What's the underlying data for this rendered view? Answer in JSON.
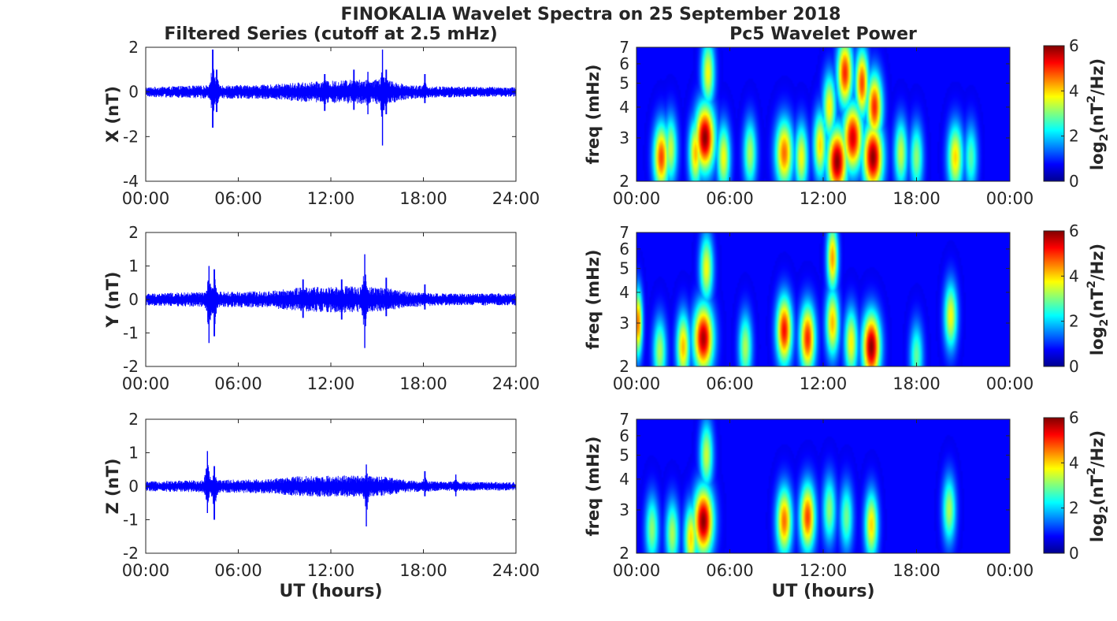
{
  "figure": {
    "title": "FINOKALIA Wavelet Spectra on 25 September 2018",
    "left_column_title": "Filtered Series (cutoff at 2.5 mHz)",
    "right_column_title": "Pc5 Wavelet Power",
    "xlabel": "UT (hours)"
  },
  "chart_data": [
    {
      "type": "line",
      "panel": "X",
      "ylabel": "X (nT)",
      "x_ticks": [
        "00:00",
        "06:00",
        "12:00",
        "18:00",
        "24:00"
      ],
      "y_ticks": [
        "2",
        "0",
        "-2",
        "-4"
      ],
      "ylim": [
        -4,
        2
      ],
      "xlim_hours": [
        0,
        24
      ],
      "color": "#0000ff",
      "base_noise_nT": [
        [
          0,
          0.12
        ],
        [
          3,
          0.16
        ],
        [
          8,
          0.18
        ],
        [
          10,
          0.24
        ],
        [
          13,
          0.3
        ],
        [
          15.5,
          0.32
        ],
        [
          17,
          0.18
        ],
        [
          19,
          0.14
        ],
        [
          24,
          0.12
        ]
      ],
      "spikes": [
        {
          "t": 4.35,
          "max": 1.9,
          "min": -1.6
        },
        {
          "t": 4.6,
          "max": 1.0,
          "min": -0.9
        },
        {
          "t": 11.6,
          "max": 0.8,
          "min": -0.85
        },
        {
          "t": 13.5,
          "max": 1.0,
          "min": -0.8
        },
        {
          "t": 14.4,
          "max": 0.9,
          "min": -1.0
        },
        {
          "t": 15.35,
          "max": 1.9,
          "min": -2.4
        },
        {
          "t": 15.6,
          "max": 1.0,
          "min": -1.0
        },
        {
          "t": 18.1,
          "max": 0.8,
          "min": -0.5
        }
      ]
    },
    {
      "type": "line",
      "panel": "Y",
      "ylabel": "Y (nT)",
      "x_ticks": [
        "00:00",
        "06:00",
        "12:00",
        "18:00",
        "24:00"
      ],
      "y_ticks": [
        "2",
        "1",
        "0",
        "-1",
        "-2"
      ],
      "ylim": [
        -2,
        2
      ],
      "xlim_hours": [
        0,
        24
      ],
      "color": "#0000ff",
      "base_noise_nT": [
        [
          0,
          0.1
        ],
        [
          3,
          0.12
        ],
        [
          8,
          0.14
        ],
        [
          10,
          0.2
        ],
        [
          13,
          0.22
        ],
        [
          15.5,
          0.2
        ],
        [
          17,
          0.13
        ],
        [
          19,
          0.1
        ],
        [
          24,
          0.1
        ]
      ],
      "spikes": [
        {
          "t": 4.1,
          "max": 1.0,
          "min": -1.3
        },
        {
          "t": 4.45,
          "max": 0.9,
          "min": -1.1
        },
        {
          "t": 10.2,
          "max": 0.6,
          "min": -0.55
        },
        {
          "t": 12.7,
          "max": 0.6,
          "min": -0.6
        },
        {
          "t": 14.2,
          "max": 1.35,
          "min": -1.45
        },
        {
          "t": 15.6,
          "max": 0.65,
          "min": -0.5
        },
        {
          "t": 18.1,
          "max": 0.45,
          "min": -0.3
        }
      ]
    },
    {
      "type": "line",
      "panel": "Z",
      "ylabel": "Z (nT)",
      "x_ticks": [
        "00:00",
        "06:00",
        "12:00",
        "18:00",
        "24:00"
      ],
      "y_ticks": [
        "2",
        "1",
        "0",
        "-1",
        "-2"
      ],
      "ylim": [
        -2,
        2
      ],
      "xlim_hours": [
        0,
        24
      ],
      "color": "#0000ff",
      "base_noise_nT": [
        [
          0,
          0.08
        ],
        [
          3,
          0.1
        ],
        [
          8,
          0.12
        ],
        [
          10,
          0.17
        ],
        [
          13,
          0.18
        ],
        [
          15.5,
          0.16
        ],
        [
          17,
          0.1
        ],
        [
          19,
          0.08
        ],
        [
          24,
          0.07
        ]
      ],
      "spikes": [
        {
          "t": 4.0,
          "max": 1.05,
          "min": -0.8
        },
        {
          "t": 4.45,
          "max": 0.6,
          "min": -1.0
        },
        {
          "t": 14.3,
          "max": 0.65,
          "min": -1.2
        },
        {
          "t": 18.1,
          "max": 0.45,
          "min": -0.3
        },
        {
          "t": 20.1,
          "max": 0.35,
          "min": -0.3
        }
      ]
    },
    {
      "type": "heatmap",
      "panel": "X",
      "ylabel": "freq (mHz)",
      "x_ticks": [
        "00:00",
        "06:00",
        "12:00",
        "18:00",
        "00:00"
      ],
      "y_ticks": [
        "7",
        "6",
        "5",
        "4",
        "3",
        "2"
      ],
      "ylim_mHz": [
        2,
        7
      ],
      "y_scale": "log",
      "xlim_hours": [
        0,
        24
      ],
      "colorbar": {
        "label_prefix": "log",
        "label_sub": "2",
        "label_mid": "(nT",
        "label_sup": "2",
        "label_suffix": "/Hz)",
        "ticks": [
          "6",
          "4",
          "2",
          "0"
        ],
        "range": [
          0,
          6
        ],
        "colormap": "jet"
      },
      "blobs": [
        {
          "t": 1.6,
          "f": 2.5,
          "p": 4.8,
          "w": 0.35
        },
        {
          "t": 2.2,
          "f": 2.7,
          "p": 3.2,
          "w": 0.3
        },
        {
          "t": 3.8,
          "f": 2.6,
          "p": 4.0,
          "w": 0.3
        },
        {
          "t": 4.4,
          "f": 3.0,
          "p": 6.0,
          "w": 0.45
        },
        {
          "t": 4.6,
          "f": 5.5,
          "p": 3.5,
          "w": 0.3
        },
        {
          "t": 5.6,
          "f": 2.5,
          "p": 3.5,
          "w": 0.3
        },
        {
          "t": 7.3,
          "f": 2.6,
          "p": 3.0,
          "w": 0.3
        },
        {
          "t": 9.5,
          "f": 2.6,
          "p": 4.5,
          "w": 0.4
        },
        {
          "t": 10.6,
          "f": 2.5,
          "p": 3.5,
          "w": 0.3
        },
        {
          "t": 11.8,
          "f": 2.8,
          "p": 3.8,
          "w": 0.3
        },
        {
          "t": 12.4,
          "f": 4.0,
          "p": 3.6,
          "w": 0.3
        },
        {
          "t": 12.9,
          "f": 2.4,
          "p": 6.0,
          "w": 0.45
        },
        {
          "t": 13.4,
          "f": 5.5,
          "p": 5.0,
          "w": 0.35
        },
        {
          "t": 13.9,
          "f": 3.0,
          "p": 5.5,
          "w": 0.45
        },
        {
          "t": 14.5,
          "f": 5.0,
          "p": 4.8,
          "w": 0.3
        },
        {
          "t": 15.2,
          "f": 2.5,
          "p": 6.0,
          "w": 0.45
        },
        {
          "t": 15.3,
          "f": 4.0,
          "p": 5.0,
          "w": 0.35
        },
        {
          "t": 17.0,
          "f": 2.6,
          "p": 3.2,
          "w": 0.3
        },
        {
          "t": 18.0,
          "f": 2.5,
          "p": 2.8,
          "w": 0.3
        },
        {
          "t": 20.5,
          "f": 2.5,
          "p": 3.8,
          "w": 0.35
        },
        {
          "t": 21.5,
          "f": 2.5,
          "p": 2.4,
          "w": 0.3
        }
      ]
    },
    {
      "type": "heatmap",
      "panel": "Y",
      "ylabel": "freq (mHz)",
      "x_ticks": [
        "00:00",
        "06:00",
        "12:00",
        "18:00",
        "00:00"
      ],
      "y_ticks": [
        "7",
        "6",
        "5",
        "4",
        "3",
        "2"
      ],
      "ylim_mHz": [
        2,
        7
      ],
      "y_scale": "log",
      "xlim_hours": [
        0,
        24
      ],
      "colorbar": {
        "label_prefix": "log",
        "label_sub": "2",
        "label_mid": "(nT",
        "label_sup": "2",
        "label_suffix": "/Hz)",
        "ticks": [
          "6",
          "4",
          "2",
          "0"
        ],
        "range": [
          0,
          6
        ],
        "colormap": "jet"
      },
      "blobs": [
        {
          "t": 0.1,
          "f": 3.0,
          "p": 4.5,
          "w": 0.2
        },
        {
          "t": 1.5,
          "f": 2.3,
          "p": 3.0,
          "w": 0.3
        },
        {
          "t": 3.0,
          "f": 2.4,
          "p": 4.0,
          "w": 0.3
        },
        {
          "t": 4.3,
          "f": 2.6,
          "p": 5.8,
          "w": 0.45
        },
        {
          "t": 4.5,
          "f": 5.0,
          "p": 3.5,
          "w": 0.3
        },
        {
          "t": 7.0,
          "f": 2.4,
          "p": 3.0,
          "w": 0.3
        },
        {
          "t": 9.5,
          "f": 2.8,
          "p": 5.2,
          "w": 0.35
        },
        {
          "t": 11.0,
          "f": 2.6,
          "p": 5.0,
          "w": 0.35
        },
        {
          "t": 12.6,
          "f": 3.0,
          "p": 4.0,
          "w": 0.3
        },
        {
          "t": 12.6,
          "f": 5.5,
          "p": 4.2,
          "w": 0.25
        },
        {
          "t": 13.8,
          "f": 2.5,
          "p": 3.6,
          "w": 0.3
        },
        {
          "t": 15.1,
          "f": 2.4,
          "p": 6.0,
          "w": 0.4
        },
        {
          "t": 18.0,
          "f": 2.2,
          "p": 2.5,
          "w": 0.3
        },
        {
          "t": 20.2,
          "f": 3.2,
          "p": 3.5,
          "w": 0.3
        }
      ]
    },
    {
      "type": "heatmap",
      "panel": "Z",
      "ylabel": "freq (mHz)",
      "x_ticks": [
        "00:00",
        "06:00",
        "12:00",
        "18:00",
        "00:00"
      ],
      "y_ticks": [
        "7",
        "6",
        "5",
        "4",
        "3",
        "2"
      ],
      "ylim_mHz": [
        2,
        7
      ],
      "y_scale": "log",
      "xlim_hours": [
        0,
        24
      ],
      "colorbar": {
        "label_prefix": "log",
        "label_sub": "2",
        "label_mid": "(nT",
        "label_sup": "2",
        "label_suffix": "/Hz)",
        "ticks": [
          "6",
          "4",
          "2",
          "0"
        ],
        "range": [
          0,
          6
        ],
        "colormap": "jet"
      },
      "blobs": [
        {
          "t": 1.0,
          "f": 2.5,
          "p": 2.8,
          "w": 0.3
        },
        {
          "t": 2.3,
          "f": 2.4,
          "p": 3.0,
          "w": 0.3
        },
        {
          "t": 3.5,
          "f": 2.3,
          "p": 3.8,
          "w": 0.3
        },
        {
          "t": 4.3,
          "f": 2.7,
          "p": 6.0,
          "w": 0.45
        },
        {
          "t": 4.5,
          "f": 5.0,
          "p": 3.2,
          "w": 0.3
        },
        {
          "t": 9.5,
          "f": 2.7,
          "p": 4.5,
          "w": 0.35
        },
        {
          "t": 11.0,
          "f": 2.8,
          "p": 4.8,
          "w": 0.35
        },
        {
          "t": 12.4,
          "f": 3.0,
          "p": 2.8,
          "w": 0.3
        },
        {
          "t": 13.5,
          "f": 2.8,
          "p": 2.6,
          "w": 0.3
        },
        {
          "t": 15.1,
          "f": 2.6,
          "p": 3.8,
          "w": 0.3
        },
        {
          "t": 20.1,
          "f": 3.0,
          "p": 3.0,
          "w": 0.3
        }
      ]
    }
  ]
}
